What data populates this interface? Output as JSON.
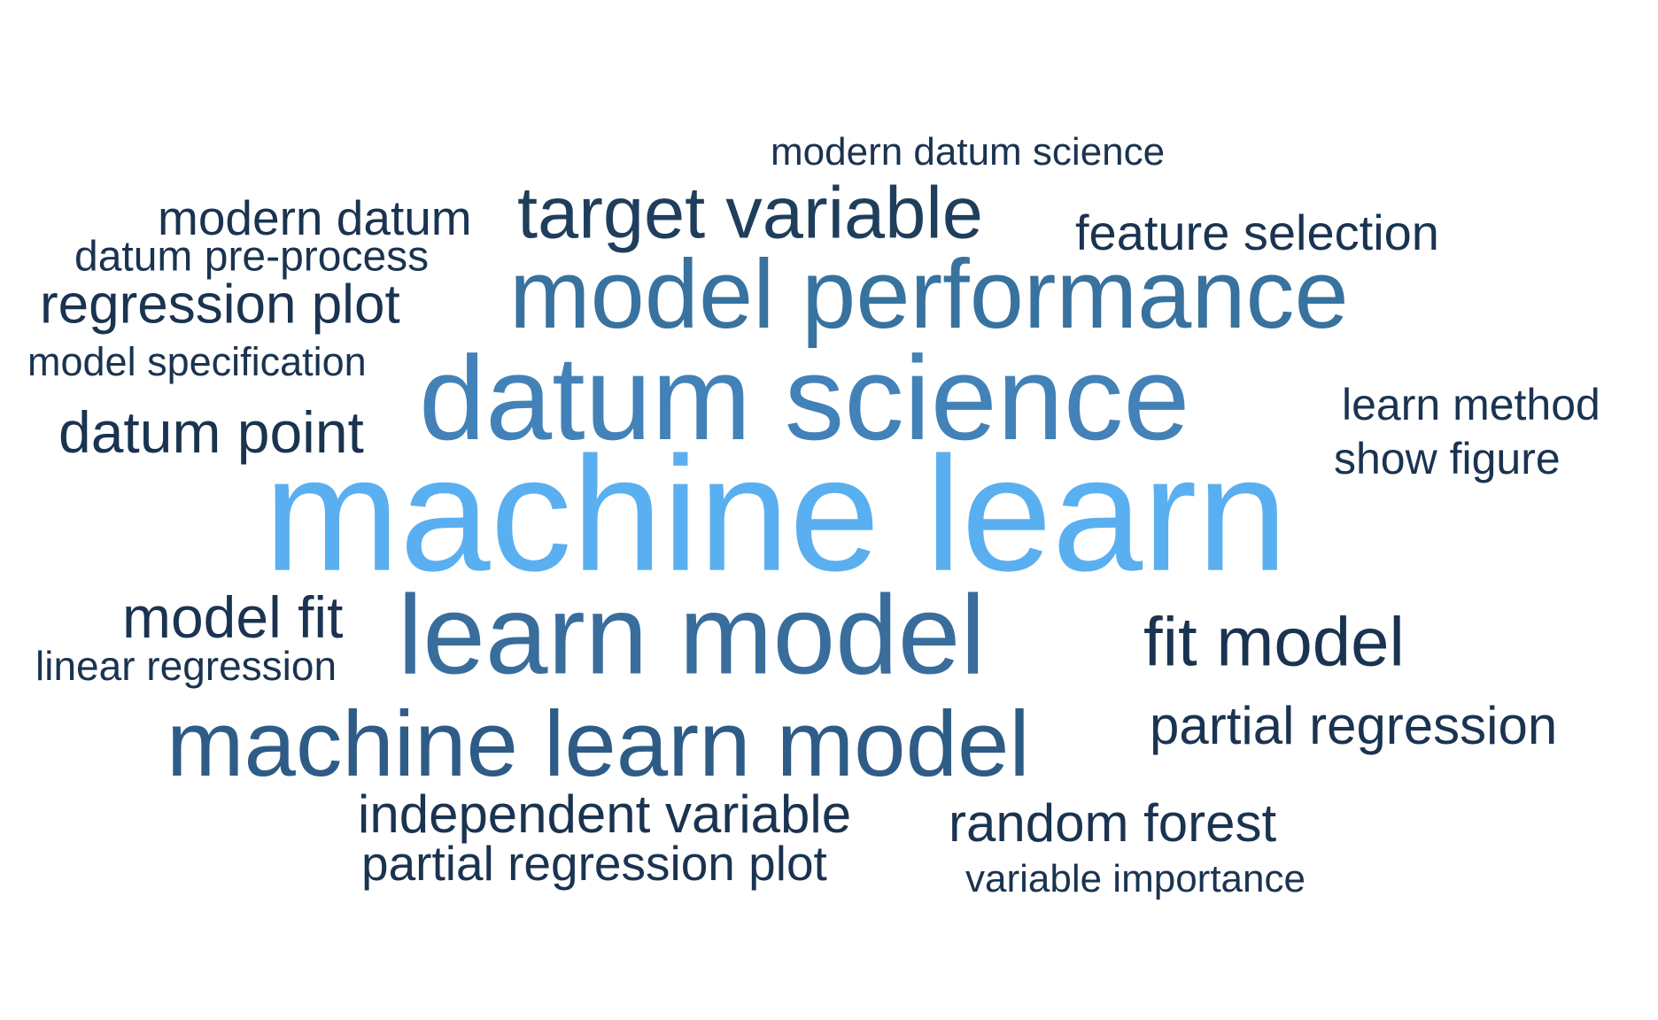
{
  "word_cloud": {
    "words": [
      {
        "id": "machine-learn",
        "text": "machine learn",
        "color": "#5aaff0"
      },
      {
        "id": "datum-science",
        "text": "datum science",
        "color": "#4282b8"
      },
      {
        "id": "model-performance",
        "text": "model performance",
        "color": "#38729f"
      },
      {
        "id": "learn-model",
        "text": "learn model",
        "color": "#386d9c"
      },
      {
        "id": "machine-learn-model",
        "text": "machine learn model",
        "color": "#2e5c87"
      },
      {
        "id": "target-variable",
        "text": "target variable",
        "color": "#1f3e5c"
      },
      {
        "id": "fit-model",
        "text": "fit model",
        "color": "#1a3350"
      },
      {
        "id": "model-fit",
        "text": "model fit",
        "color": "#1a3350"
      },
      {
        "id": "datum-point",
        "text": "datum point",
        "color": "#1a3350"
      },
      {
        "id": "partial-regression",
        "text": "partial regression",
        "color": "#1a3350"
      },
      {
        "id": "regression-plot",
        "text": "regression plot",
        "color": "#1a3350"
      },
      {
        "id": "independent-variable",
        "text": "independent variable",
        "color": "#1a3350"
      },
      {
        "id": "random-forest",
        "text": "random forest",
        "color": "#1a3350"
      },
      {
        "id": "feature-selection",
        "text": "feature selection",
        "color": "#1a3350"
      },
      {
        "id": "partial-regression-plot",
        "text": "partial regression plot",
        "color": "#1a3350"
      },
      {
        "id": "modern-datum",
        "text": "modern datum",
        "color": "#1a3350"
      },
      {
        "id": "learn-method",
        "text": "learn method",
        "color": "#1a3350"
      },
      {
        "id": "show-figure",
        "text": "show figure",
        "color": "#1a3350"
      },
      {
        "id": "datum-pre-process",
        "text": "datum pre-process",
        "color": "#1a3350"
      },
      {
        "id": "linear-regression",
        "text": "linear regression",
        "color": "#1a3350"
      },
      {
        "id": "model-specification",
        "text": "model specification",
        "color": "#1a3350"
      },
      {
        "id": "modern-datum-science",
        "text": "modern datum science",
        "color": "#1a3350"
      },
      {
        "id": "variable-importance",
        "text": "variable importance",
        "color": "#1a3350"
      }
    ]
  }
}
